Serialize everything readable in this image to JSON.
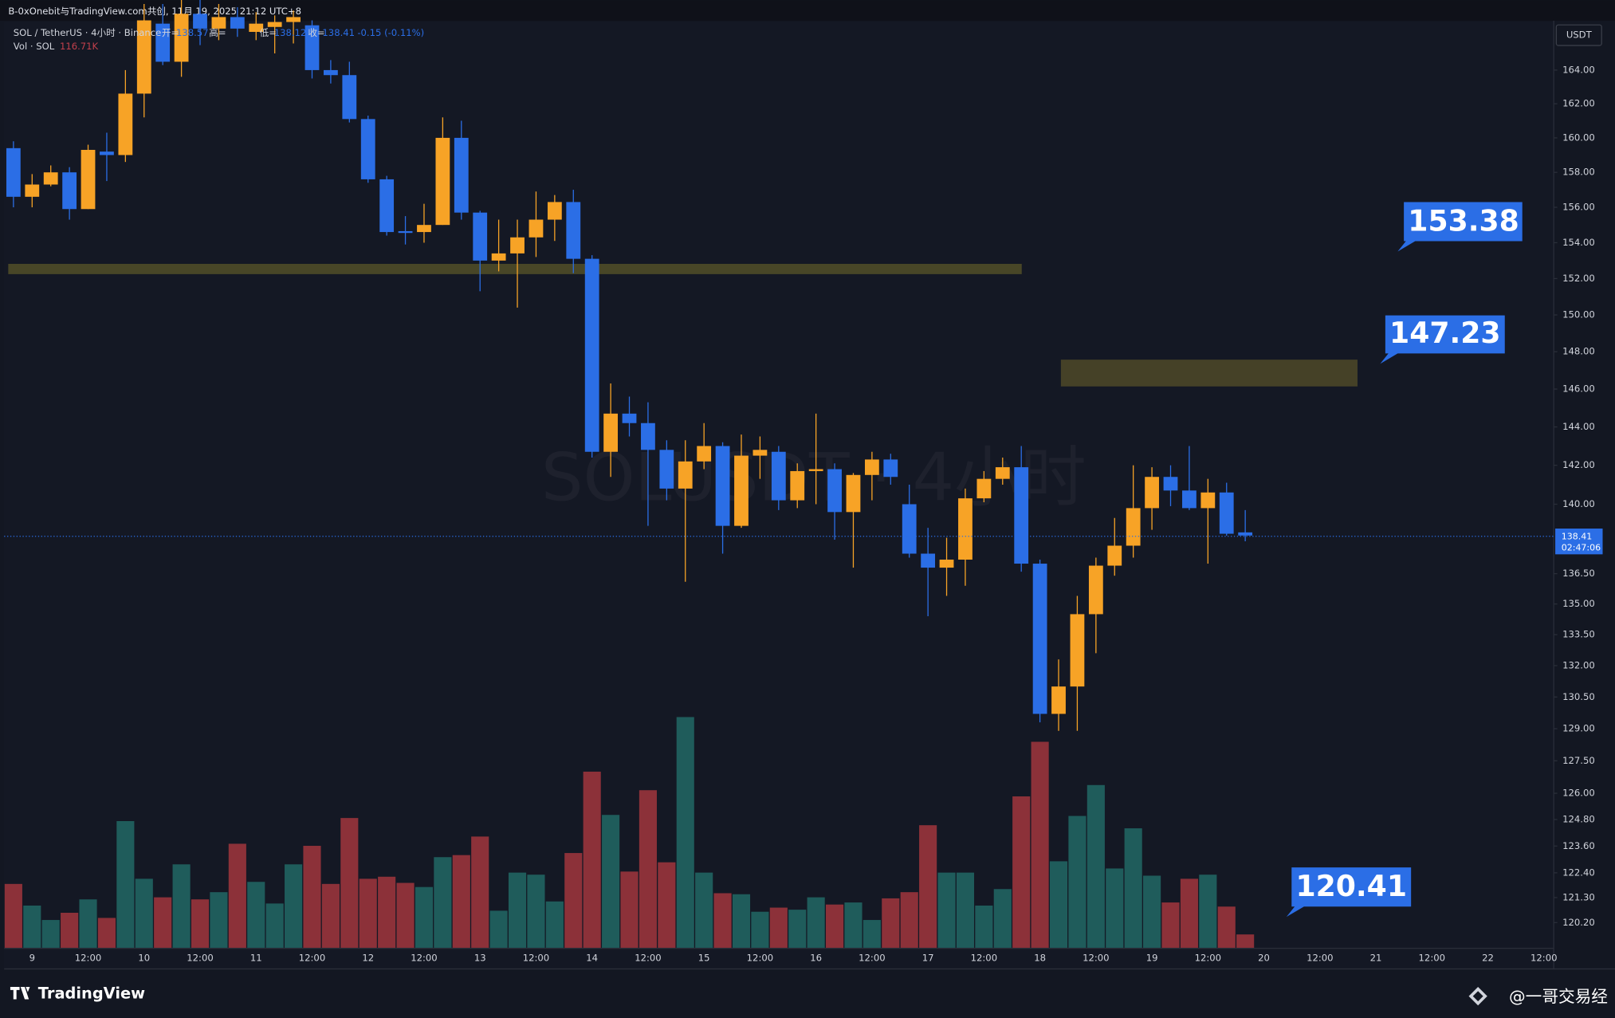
{
  "header": {
    "title": "B-0xOnebit与TradingView.com共创, 11月 19, 2025 21:12 UTC+8"
  },
  "legend": {
    "symbol": "SOL / TetherUS · 4小时 · Binance",
    "open_label": "开=",
    "high_label": "高=",
    "low_label": "低=",
    "close_label": "收=",
    "change": "-0.15 (-0.11%)",
    "volume_name": "Vol · SOL",
    "volume_value": "116.71K"
  },
  "currency": "USDT",
  "countdown": "02:47:06",
  "watermark": "SOLUSDT · 4小时",
  "annotations": [
    "153.38",
    "147.23",
    "120.41"
  ],
  "footer": {
    "brand": "TradingView",
    "author": "@一哥交易经"
  },
  "chart_data": {
    "type": "candlestick",
    "log_scale": true,
    "grid": false,
    "up_color": "#f7a326",
    "down_color": "#2b6ee6",
    "volume_up_color": "#1f5c5b",
    "volume_down_color": "#8c3139",
    "categories": [
      null,
      "9",
      null,
      null,
      "12:00",
      null,
      null,
      "10",
      null,
      null,
      "12:00",
      null,
      null,
      "11",
      null,
      null,
      "12:00",
      null,
      null,
      "12",
      null,
      null,
      "12:00",
      null,
      null,
      "13",
      null,
      null,
      "12:00",
      null,
      null,
      "14",
      null,
      null,
      "12:00",
      null,
      null,
      "15",
      null,
      null,
      "12:00",
      null,
      null,
      "16",
      null,
      null,
      "12:00",
      null,
      null,
      "17",
      null,
      null,
      "12:00",
      null,
      null,
      "18",
      null,
      null,
      "12:00",
      null,
      null,
      "19",
      null,
      null,
      "12:00",
      null,
      null,
      "20",
      null,
      null,
      "12:00",
      null,
      null,
      "21",
      null,
      null,
      "12:00",
      null,
      null,
      "22",
      null,
      null,
      "12:00"
    ],
    "open": [
      159.4,
      156.6,
      157.3,
      158.0,
      155.9,
      159.2,
      159.0,
      162.6,
      166.8,
      164.5,
      167.4,
      166.5,
      167.2,
      166.3,
      166.6,
      166.9,
      166.7,
      164.0,
      163.7,
      161.1,
      157.6,
      154.65,
      154.6,
      155.0,
      160.0,
      155.7,
      153.0,
      153.4,
      154.3,
      155.3,
      156.3,
      153.1,
      142.7,
      144.7,
      144.2,
      142.8,
      140.8,
      142.2,
      143.0,
      138.9,
      142.5,
      142.7,
      140.2,
      141.7,
      141.8,
      139.6,
      141.5,
      142.3,
      140.0,
      137.5,
      136.8,
      137.2,
      140.3,
      141.3,
      141.9,
      137.0,
      129.7,
      131.0,
      134.5,
      136.9,
      137.9,
      139.8,
      141.4,
      140.7,
      139.8,
      140.6,
      138.57,
      null,
      null,
      null,
      null,
      null,
      null,
      null,
      null,
      null,
      null,
      null,
      null,
      null,
      null,
      null,
      null
    ],
    "high": [
      159.8,
      157.9,
      158.4,
      158.3,
      159.6,
      160.3,
      164.0,
      168.0,
      168.0,
      168.5,
      168.5,
      168.0,
      167.8,
      167.5,
      167.3,
      167.6,
      167.0,
      164.6,
      164.5,
      161.3,
      157.8,
      155.5,
      156.2,
      161.2,
      161.0,
      155.8,
      155.3,
      155.3,
      156.9,
      156.7,
      157.0,
      153.3,
      146.3,
      145.6,
      145.3,
      143.3,
      143.3,
      144.2,
      143.2,
      143.6,
      143.5,
      143.0,
      142.1,
      144.7,
      142.1,
      141.6,
      142.7,
      142.6,
      141.0,
      138.8,
      138.3,
      140.8,
      141.7,
      142.4,
      143.0,
      137.2,
      132.3,
      135.4,
      137.3,
      139.3,
      142.0,
      141.9,
      142.0,
      143.0,
      141.3,
      141.1,
      139.7,
      null,
      null,
      null,
      null,
      null,
      null,
      null,
      null,
      null,
      null,
      null,
      null,
      null,
      null,
      null,
      null
    ],
    "low": [
      156.0,
      156.0,
      157.2,
      155.3,
      155.9,
      157.5,
      158.6,
      161.2,
      164.3,
      163.6,
      165.5,
      165.8,
      166.0,
      165.8,
      165.0,
      165.6,
      163.5,
      163.2,
      160.9,
      157.4,
      154.4,
      153.9,
      154.0,
      155.0,
      155.3,
      151.3,
      152.4,
      150.4,
      153.2,
      154.1,
      152.3,
      142.4,
      141.4,
      143.5,
      138.9,
      140.2,
      136.1,
      141.8,
      137.5,
      138.8,
      141.3,
      139.7,
      139.8,
      140.0,
      138.2,
      136.8,
      140.2,
      141.0,
      137.3,
      134.4,
      135.4,
      135.9,
      140.1,
      141.0,
      136.6,
      129.3,
      128.9,
      128.9,
      132.6,
      136.4,
      137.3,
      138.7,
      139.9,
      139.7,
      137.0,
      138.4,
      138.12,
      null,
      null,
      null,
      null,
      null,
      null,
      null,
      null,
      null,
      null,
      null,
      null,
      null,
      null,
      null,
      null
    ],
    "close": [
      156.6,
      157.3,
      158.0,
      155.9,
      159.3,
      159.0,
      162.6,
      167.0,
      164.5,
      167.4,
      166.5,
      167.2,
      166.5,
      166.8,
      166.9,
      167.2,
      164.0,
      163.7,
      161.1,
      157.6,
      154.6,
      154.55,
      155.0,
      160.0,
      155.7,
      153.0,
      153.4,
      154.3,
      155.3,
      156.3,
      153.1,
      142.7,
      144.7,
      144.2,
      142.8,
      140.8,
      142.2,
      143.0,
      138.9,
      142.5,
      142.8,
      140.2,
      141.7,
      141.8,
      139.6,
      141.5,
      142.3,
      141.4,
      137.5,
      136.8,
      137.2,
      140.3,
      141.3,
      141.9,
      137.0,
      129.7,
      131.0,
      134.5,
      136.9,
      137.9,
      139.8,
      141.4,
      140.7,
      139.8,
      140.6,
      138.5,
      138.41,
      null,
      null,
      null,
      null,
      null,
      null,
      null,
      null,
      null,
      null,
      null,
      null,
      null,
      null,
      null,
      null
    ],
    "volume": [
      558000,
      369000,
      243000,
      306000,
      423000,
      261000,
      1107000,
      603000,
      441000,
      729000,
      423000,
      486000,
      909000,
      576000,
      387000,
      729000,
      891000,
      558000,
      1134000,
      603000,
      621000,
      567000,
      531000,
      792000,
      810000,
      972000,
      324000,
      657000,
      639000,
      405000,
      828000,
      1539000,
      1161000,
      666000,
      1377000,
      747000,
      2016000,
      657000,
      477000,
      468000,
      315000,
      351000,
      333000,
      441000,
      378000,
      396000,
      243000,
      432000,
      486000,
      1071000,
      657000,
      657000,
      369000,
      513000,
      1323000,
      1800000,
      756000,
      1152000,
      1422000,
      693000,
      1044000,
      630000,
      396000,
      603000,
      639000,
      360000,
      116710,
      null,
      null,
      null,
      null,
      null,
      null,
      null,
      null,
      null,
      null,
      null,
      null,
      null,
      null,
      null,
      null
    ],
    "ylim": [
      119.1,
      166.85
    ],
    "yticks": [
      {
        "value": 164,
        "label": "164.00"
      },
      {
        "value": 162,
        "label": "162.00"
      },
      {
        "value": 160,
        "label": "160.00"
      },
      {
        "value": 158,
        "label": "158.00"
      },
      {
        "value": 156,
        "label": "156.00"
      },
      {
        "value": 154,
        "label": "154.00"
      },
      {
        "value": 152,
        "label": "152.00"
      },
      {
        "value": 150,
        "label": "150.00"
      },
      {
        "value": 148,
        "label": "148.00"
      },
      {
        "value": 146,
        "label": "146.00"
      },
      {
        "value": 144,
        "label": "144.00"
      },
      {
        "value": 142,
        "label": "142.00"
      },
      {
        "value": 140,
        "label": "140.00"
      },
      {
        "value": 136.5,
        "label": "136.50"
      },
      {
        "value": 135,
        "label": "135.00"
      },
      {
        "value": 133.5,
        "label": "133.50"
      },
      {
        "value": 132,
        "label": "132.00"
      },
      {
        "value": 130.5,
        "label": "130.50"
      },
      {
        "value": 129,
        "label": "129.00"
      },
      {
        "value": 127.5,
        "label": "127.50"
      },
      {
        "value": 126,
        "label": "126.00"
      },
      {
        "value": 124.8,
        "label": "124.80"
      },
      {
        "value": 123.6,
        "label": "123.60"
      },
      {
        "value": 122.4,
        "label": "122.40"
      },
      {
        "value": 121.3,
        "label": "121.30"
      },
      {
        "value": 120.2,
        "label": "120.20"
      }
    ]
  }
}
